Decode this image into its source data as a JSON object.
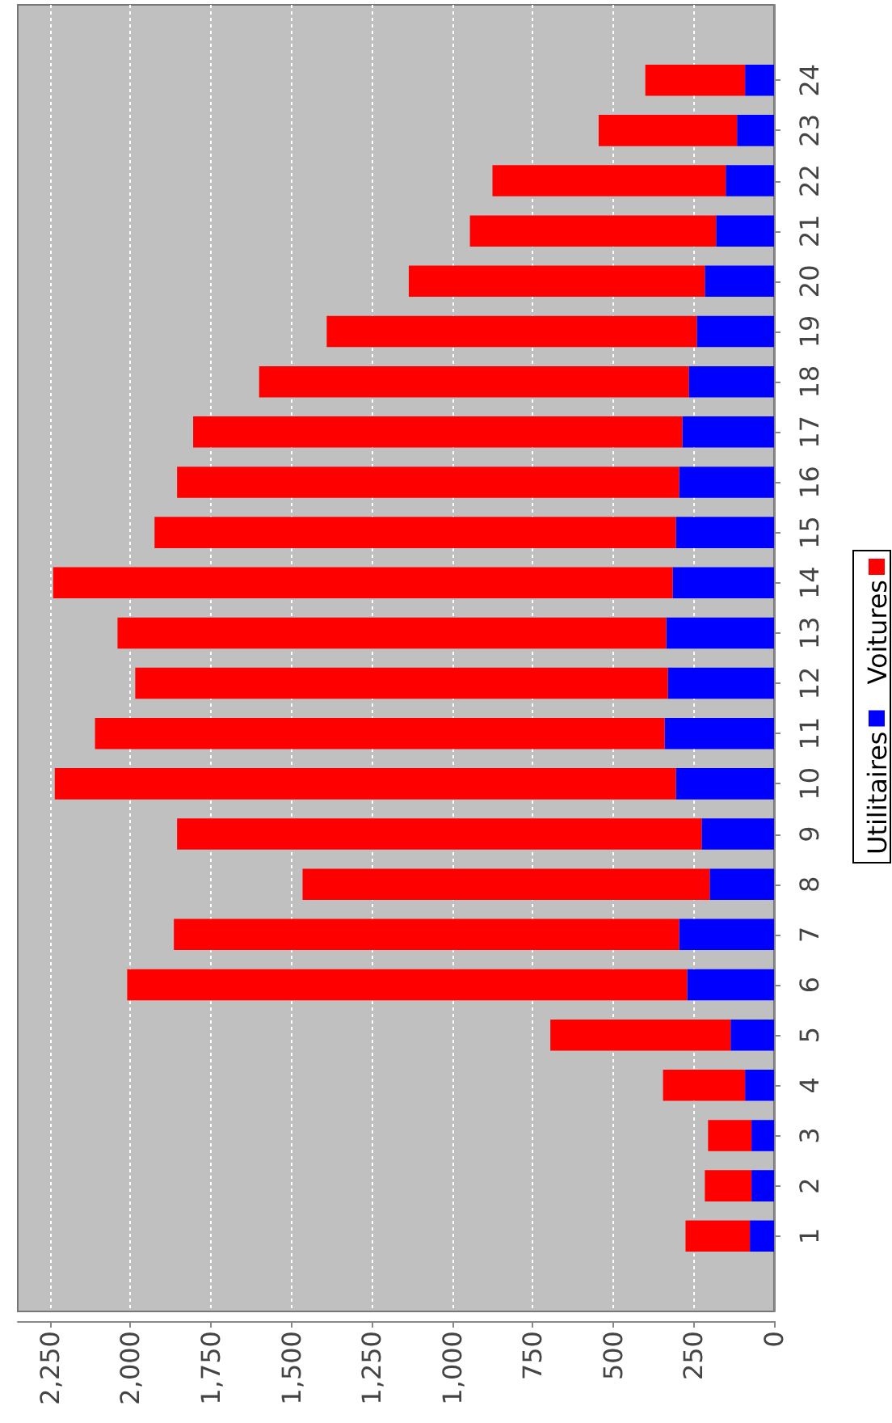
{
  "chart_data": {
    "type": "bar",
    "orientation": "horizontal",
    "stacked": true,
    "categories": [
      "24",
      "23",
      "22",
      "21",
      "20",
      "19",
      "18",
      "17",
      "16",
      "15",
      "14",
      "13",
      "12",
      "11",
      "10",
      "9",
      "8",
      "7",
      "6",
      "5",
      "4",
      "3",
      "2",
      "1"
    ],
    "series": [
      {
        "name": "Utilitaires",
        "color": "#0000ff",
        "values": [
          90,
          115,
          150,
          180,
          215,
          240,
          265,
          285,
          295,
          305,
          315,
          335,
          330,
          340,
          305,
          225,
          200,
          295,
          270,
          135,
          90,
          70,
          70,
          75
        ]
      },
      {
        "name": "Voitures",
        "color": "#ff0000",
        "values": [
          310,
          430,
          725,
          765,
          920,
          1150,
          1335,
          1520,
          1560,
          1620,
          1925,
          1705,
          1655,
          1770,
          1930,
          1630,
          1265,
          1570,
          1740,
          560,
          255,
          135,
          145,
          200
        ]
      }
    ],
    "xlim": [
      2350,
      0
    ],
    "xticks": [
      0,
      250,
      500,
      750,
      {
        "value": 1000,
        "label": "1,000"
      },
      {
        "value": 1250,
        "label": "1,250"
      },
      {
        "value": 1500,
        "label": "1,500"
      },
      {
        "value": 1750,
        "label": "1,750"
      },
      {
        "value": 2000,
        "label": "2,000"
      },
      {
        "value": 2250,
        "label": "2,250"
      }
    ],
    "grid": "x",
    "legend": "right"
  }
}
